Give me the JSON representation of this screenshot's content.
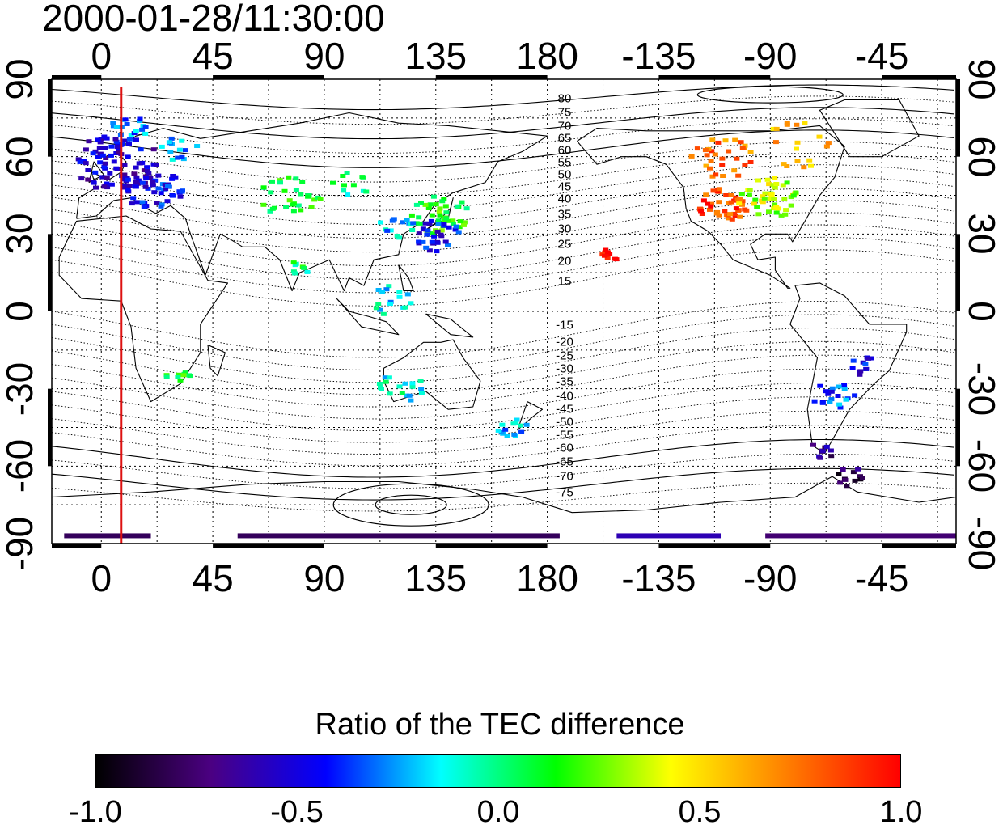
{
  "title": "2000-01-28/11:30:00",
  "map": {
    "lon_min": -20,
    "lon_max": 345,
    "lat_min": -90,
    "lat_max": 90,
    "top_ticks": [
      {
        "lon": 0,
        "label": "0"
      },
      {
        "lon": 45,
        "label": "45"
      },
      {
        "lon": 90,
        "label": "90"
      },
      {
        "lon": 135,
        "label": "135"
      },
      {
        "lon": 180,
        "label": "180"
      },
      {
        "lon": 225,
        "label": "-135"
      },
      {
        "lon": 270,
        "label": "-90"
      },
      {
        "lon": 315,
        "label": "-45"
      }
    ],
    "bottom_ticks": [
      {
        "lon": 0,
        "label": "0"
      },
      {
        "lon": 45,
        "label": "45"
      },
      {
        "lon": 90,
        "label": "90"
      },
      {
        "lon": 135,
        "label": "135"
      },
      {
        "lon": 180,
        "label": "180"
      },
      {
        "lon": 225,
        "label": "-135"
      },
      {
        "lon": 270,
        "label": "-90"
      },
      {
        "lon": 315,
        "label": "-45"
      }
    ],
    "left_ticks": [
      {
        "lat": 90,
        "label": "90"
      },
      {
        "lat": 60,
        "label": "60"
      },
      {
        "lat": 30,
        "label": "30"
      },
      {
        "lat": 0,
        "label": "0"
      },
      {
        "lat": -30,
        "label": "-30"
      },
      {
        "lat": -60,
        "label": "-60"
      },
      {
        "lat": -90,
        "label": "-90"
      }
    ],
    "right_ticks": [
      {
        "lat": 90,
        "label": "90"
      },
      {
        "lat": 60,
        "label": "60"
      },
      {
        "lat": 30,
        "label": "30"
      },
      {
        "lat": 0,
        "label": "0"
      },
      {
        "lat": -30,
        "label": "-30"
      },
      {
        "lat": -60,
        "label": "-60"
      },
      {
        "lat": -90,
        "label": "-90"
      }
    ],
    "grid_lons": [
      0,
      22.5,
      45,
      67.5,
      90,
      112.5,
      135,
      157.5,
      180,
      202.5,
      225,
      247.5,
      270,
      292.5,
      315,
      337.5
    ],
    "grid_lats": [
      75,
      60,
      45,
      30,
      15,
      0,
      -15,
      -30,
      -45,
      -60,
      -75
    ],
    "meridian_line": {
      "lon": 8,
      "color": "#dd1111"
    },
    "contour_labels_north": [
      "80",
      "75",
      "70",
      "65",
      "60",
      "55",
      "50",
      "45",
      "40",
      "35",
      "30",
      "25",
      "20",
      "15"
    ],
    "contour_labels_south": [
      "-15",
      "-20",
      "-25",
      "-30",
      "-35",
      "-40",
      "-45",
      "-50",
      "-55",
      "-60",
      "-65",
      "-70",
      "-75"
    ],
    "data_clusters": [
      {
        "lon": 5,
        "lat": 58,
        "r": 14,
        "v": -0.55,
        "n": 90
      },
      {
        "lon": 20,
        "lat": 48,
        "r": 10,
        "v": -0.45,
        "n": 45
      },
      {
        "lon": 10,
        "lat": 72,
        "r": 6,
        "v": -0.3,
        "n": 18
      },
      {
        "lon": 30,
        "lat": 64,
        "r": 6,
        "v": -0.2,
        "n": 14
      },
      {
        "lon": 75,
        "lat": 45,
        "r": 10,
        "v": 0.1,
        "n": 30
      },
      {
        "lon": 100,
        "lat": 50,
        "r": 6,
        "v": -0.05,
        "n": 12
      },
      {
        "lon": 135,
        "lat": 38,
        "r": 10,
        "v": 0.15,
        "n": 40
      },
      {
        "lon": 135,
        "lat": 30,
        "r": 8,
        "v": -0.45,
        "n": 30
      },
      {
        "lon": 118,
        "lat": 34,
        "r": 6,
        "v": -0.2,
        "n": 14
      },
      {
        "lon": 115,
        "lat": 5,
        "r": 7,
        "v": -0.15,
        "n": 16
      },
      {
        "lon": 120,
        "lat": -28,
        "r": 8,
        "v": -0.1,
        "n": 18
      },
      {
        "lon": 165,
        "lat": -45,
        "r": 5,
        "v": -0.2,
        "n": 14
      },
      {
        "lon": 250,
        "lat": 42,
        "r": 8,
        "v": 0.85,
        "n": 45
      },
      {
        "lon": 268,
        "lat": 45,
        "r": 10,
        "v": 0.35,
        "n": 45
      },
      {
        "lon": 250,
        "lat": 60,
        "r": 10,
        "v": 0.75,
        "n": 30
      },
      {
        "lon": 280,
        "lat": 65,
        "r": 12,
        "v": 0.6,
        "n": 18
      },
      {
        "lon": 205,
        "lat": 23,
        "r": 3,
        "v": 0.95,
        "n": 10
      },
      {
        "lon": 295,
        "lat": -32,
        "r": 7,
        "v": -0.35,
        "n": 20
      },
      {
        "lon": 305,
        "lat": -20,
        "r": 5,
        "v": -0.45,
        "n": 12
      },
      {
        "lon": 290,
        "lat": -53,
        "r": 4,
        "v": -0.7,
        "n": 10
      },
      {
        "lon": 300,
        "lat": -63,
        "r": 5,
        "v": -0.8,
        "n": 12
      },
      {
        "lon": 30,
        "lat": -25,
        "r": 4,
        "v": 0.1,
        "n": 10
      },
      {
        "lon": 80,
        "lat": 18,
        "r": 4,
        "v": 0.05,
        "n": 8
      }
    ],
    "antarctic_bands": [
      {
        "lon_start": -15,
        "lon_end": 20,
        "lat": -87,
        "v": -0.8
      },
      {
        "lon_start": 55,
        "lon_end": 185,
        "lat": -87,
        "v": -0.8
      },
      {
        "lon_start": 208,
        "lon_end": 250,
        "lat": -87,
        "v": -0.6
      },
      {
        "lon_start": 268,
        "lon_end": 345,
        "lat": -87,
        "v": -0.75
      }
    ]
  },
  "colorbar": {
    "title": "Ratio of the TEC difference",
    "min": -1.0,
    "max": 1.0,
    "ticks": [
      "-1.0",
      "-0.5",
      "0.0",
      "0.5",
      "1.0"
    ],
    "stops": [
      "#000000",
      "#4b0082",
      "#0000ff",
      "#00ffff",
      "#00ff00",
      "#ffff00",
      "#ff8000",
      "#ff0000"
    ]
  }
}
